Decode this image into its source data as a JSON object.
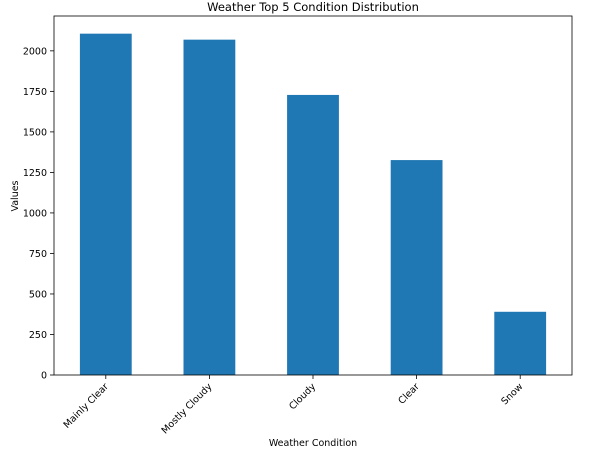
{
  "chart_data": {
    "type": "bar",
    "title": "Weather Top 5 Condition Distribution",
    "xlabel": "Weather Condition",
    "ylabel": "Values",
    "categories": [
      "Mainly Clear",
      "Mostly Cloudy",
      "Cloudy",
      "Clear",
      "Snow"
    ],
    "values": [
      2106,
      2069,
      1728,
      1326,
      390
    ],
    "ylim": [
      0,
      2215
    ],
    "yticks": [
      0,
      250,
      500,
      750,
      1000,
      1250,
      1500,
      1750,
      2000
    ],
    "ytick_labels": [
      "0",
      "250",
      "500",
      "750",
      "1000",
      "1250",
      "1500",
      "1750",
      "2000"
    ],
    "bar_color": "#1f77b4",
    "grid": false,
    "legend": "none"
  }
}
